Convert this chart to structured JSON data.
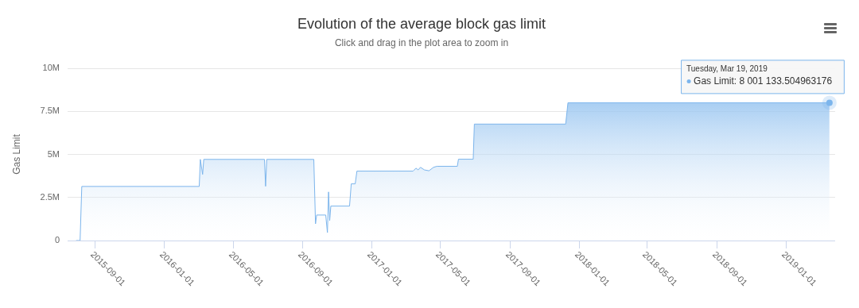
{
  "chart_data": {
    "type": "area",
    "title": "Evolution of the average block gas limit",
    "subtitle": "Click and drag in the plot area to zoom in",
    "ylabel": "Gas Limit",
    "x": [
      "2015-07-30",
      "2015-08-06",
      "2015-08-09",
      "2016-03-03",
      "2016-03-05",
      "2016-03-09",
      "2016-03-11",
      "2016-06-26",
      "2016-06-28",
      "2016-06-30",
      "2016-09-21",
      "2016-09-24",
      "2016-09-26",
      "2016-10-12",
      "2016-10-15",
      "2016-10-17",
      "2016-10-19",
      "2016-10-21",
      "2016-11-23",
      "2016-11-26",
      "2016-12-03",
      "2016-12-06",
      "2017-03-15",
      "2017-03-20",
      "2017-03-24",
      "2017-03-28",
      "2017-04-04",
      "2017-04-12",
      "2017-04-20",
      "2017-04-26",
      "2017-06-01",
      "2017-06-03",
      "2017-06-29",
      "2017-07-01",
      "2017-12-09",
      "2017-12-13",
      "2019-03-19"
    ],
    "series": [
      {
        "color": "#7cb5ec",
        "values": [
          0,
          0,
          3140000,
          3140000,
          4710000,
          3840000,
          4710000,
          4710000,
          3150000,
          4710000,
          4710000,
          970000,
          1480000,
          1480000,
          460000,
          2820000,
          1160000,
          2000000,
          2000000,
          3290000,
          3290000,
          4030000,
          4030000,
          4200000,
          4100000,
          4250000,
          4100000,
          4050000,
          4250000,
          4310000,
          4310000,
          4720000,
          4720000,
          6760000,
          6760000,
          8000000,
          8000000
        ]
      }
    ],
    "xlim": [
      "2015-07-15",
      "2019-03-29"
    ],
    "xticks": [
      "2015-09-01",
      "2016-01-01",
      "2016-05-01",
      "2016-09-01",
      "2017-01-01",
      "2017-05-01",
      "2017-09-01",
      "2018-01-01",
      "2018-05-01",
      "2018-09-01",
      "2019-01-01"
    ],
    "ylim": [
      0,
      10000000
    ],
    "yticks": [
      {
        "value": 0,
        "label": "0"
      },
      {
        "value": 2500000,
        "label": "2.5M"
      },
      {
        "value": 5000000,
        "label": "5M"
      },
      {
        "value": 7500000,
        "label": "7.5M"
      },
      {
        "value": 10000000,
        "label": "10M"
      }
    ],
    "grid": "y",
    "legend": false,
    "marker": "none",
    "line_style": "solid",
    "annotations": [
      "Tuesday, Mar 19, 2019",
      "Gas Limit: 8 001 133.504963176"
    ]
  }
}
